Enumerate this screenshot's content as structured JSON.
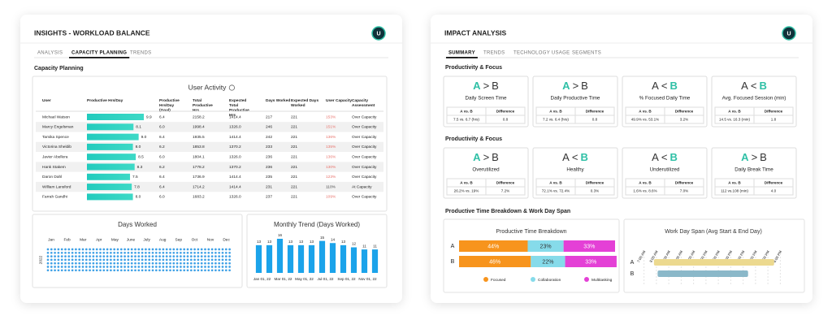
{
  "left_panel": {
    "title": "INSIGHTS - WORKLOAD BALANCE",
    "avatar": "U",
    "tabs": [
      "ANALYSIS",
      "CAPACITY PLANNING",
      "TRENDS"
    ],
    "active_tab": 1,
    "section_title": "Capacity Planning",
    "table": {
      "title": "User Activity",
      "columns": [
        "User",
        "Productive Hrs/Day",
        "Productive Hrs/Day (Goal)",
        "Total Productive Hrs",
        "Expected Total Productive Hrs",
        "Days Worked",
        "Expected Days Worked",
        "User Capacity",
        "Capacity Assessment"
      ],
      "rows": [
        [
          "Michael Watson",
          "9.9",
          "6.4",
          "2158.2",
          "1414.4",
          "217",
          "221",
          "153%",
          "Over Capacity"
        ],
        [
          "Marcy Engelsman",
          "8.1",
          "6.0",
          "1998.4",
          "1326.0",
          "246",
          "221",
          "151%",
          "Over Capacity"
        ],
        [
          "Tamika Spence",
          "9.0",
          "6.4",
          "1935.5",
          "1414.4",
          "242",
          "221",
          "136%",
          "Over Capacity"
        ],
        [
          "Victorina Sheldib",
          "8.0",
          "6.2",
          "1853.8",
          "1370.2",
          "233",
          "221",
          "135%",
          "Over Capacity"
        ],
        [
          "Javier Abellera",
          "8.5",
          "6.0",
          "1804.1",
          "1326.0",
          "236",
          "221",
          "136%",
          "Over Capacity"
        ],
        [
          "Hank Stakem",
          "8.3",
          "6.2",
          "1778.2",
          "1370.2",
          "236",
          "221",
          "130%",
          "Over Capacity"
        ],
        [
          "Daron Dahl",
          "7.5",
          "6.4",
          "1736.9",
          "1414.4",
          "235",
          "221",
          "123%",
          "Over Capacity"
        ],
        [
          "William Lansford",
          "7.8",
          "6.4",
          "1714.2",
          "1414.4",
          "231",
          "221",
          "110%",
          "At Capacity"
        ],
        [
          "Farrah Gandhi",
          "8.0",
          "6.0",
          "1683.2",
          "1326.0",
          "237",
          "221",
          "109%",
          "Over Capacity"
        ]
      ],
      "bar_values": [
        9.9,
        8.1,
        9.0,
        8.0,
        8.5,
        8.3,
        7.5,
        7.8,
        8.0
      ],
      "bar_color": "#22cbbd",
      "capacity_colors": [
        "#e8736c",
        "#e8736c",
        "#e8736c",
        "#e8736c",
        "#e8736c",
        "#e8736c",
        "#e8736c",
        "#444444",
        "#e8736c"
      ]
    },
    "days_worked": {
      "title": "Days Worked",
      "months": [
        "Jan",
        "Feb",
        "Mar",
        "Apr",
        "May",
        "June",
        "July",
        "Aug",
        "Sep",
        "Oct",
        "Nov",
        "Dec"
      ],
      "year": "2022",
      "color": "#3ea0e6"
    },
    "chart_data": {
      "type": "bar",
      "title": "Monthly Trend (Days Worked)",
      "categories": [
        "Jan 01, 22",
        null,
        "Mar 01, 22",
        null,
        "May 01, 22",
        null,
        "Jul 01, 22",
        null,
        "Sep 01, 22",
        null,
        "Nov 01, 22",
        null
      ],
      "values": [
        13,
        13,
        16,
        13,
        13,
        13,
        15,
        14,
        13,
        12,
        11,
        11
      ],
      "color": "#1ba3ea"
    }
  },
  "right_panel": {
    "title": "IMPACT ANALYSIS",
    "avatar": "U",
    "tabs": [
      "SUMMARY",
      "TRENDS",
      "TECHNOLOGY USAGE",
      "SEGMENTS"
    ],
    "active_tab": 0,
    "accent_color": "#2fc0a6",
    "table_headers": [
      "A vs. B",
      "Difference"
    ],
    "sections": [
      {
        "title": "Productivity & Focus",
        "cards": [
          {
            "left": "A",
            "op": ">",
            "right": "B",
            "label": "Daily Screen Time",
            "ab": "7.5 vs. 6.7 (hrs)",
            "diff": "0.8"
          },
          {
            "left": "A",
            "op": ">",
            "right": "B",
            "label": "Daily Productive Time",
            "ab": "7.2 vs. 6.4 (hrs)",
            "diff": "0.8"
          },
          {
            "left": "A",
            "op": "<",
            "right": "B",
            "label": "% Focused Daily Time",
            "ab": "49.9% vs. 53.1%",
            "diff": "3.2%"
          },
          {
            "left": "A",
            "op": "<",
            "right": "B",
            "label": "Avg. Focused Session (min)",
            "ab": "14.5 vs. 16.3 (min)",
            "diff": "1.8"
          }
        ]
      },
      {
        "title": "Productivity & Focus",
        "cards": [
          {
            "left": "A",
            "op": ">",
            "right": "B",
            "label": "Overutilized",
            "ab": "26.2% vs. 19%",
            "diff": "7.2%"
          },
          {
            "left": "A",
            "op": "<",
            "right": "B",
            "label": "Healthy",
            "ab": "72.1% vs. 72.4%",
            "diff": "0.3%"
          },
          {
            "left": "A",
            "op": "<",
            "right": "B",
            "label": "Underutilized",
            "ab": "1.6% vs. 8.6%",
            "diff": "7.0%"
          },
          {
            "left": "A",
            "op": ">",
            "right": "B",
            "label": "Daily Break Time",
            "ab": "112 vs.108 (min)",
            "diff": "4.0"
          }
        ]
      }
    ],
    "breakdown_title": "Productive Time Breakdown & Work Day Span",
    "chart_data": [
      {
        "type": "bar",
        "orientation": "horizontal",
        "stacked": true,
        "title": "Productive Time Breakdown",
        "categories": [
          "A",
          "B"
        ],
        "xlim": [
          0,
          100
        ],
        "series": [
          {
            "name": "Focused",
            "color": "#f7941d",
            "values": [
              44,
              46
            ],
            "value_labels": [
              "44%",
              "46%"
            ]
          },
          {
            "name": "Collaboration",
            "color": "#86dbea",
            "values": [
              23,
              22
            ],
            "value_labels": [
              "23%",
              "22%"
            ]
          },
          {
            "name": "Multitasking",
            "color": "#e440d6",
            "values": [
              33,
              33
            ],
            "value_labels": [
              "33%",
              "33%"
            ]
          }
        ]
      },
      {
        "type": "range_bar",
        "title": "Work Day Span (Avg Start & End Day)",
        "categories": [
          "A",
          "B"
        ],
        "start": [
          7.8,
          8.1
        ],
        "end": [
          17.5,
          15.4
        ],
        "colors": [
          "#ecd98f",
          "#8bb8c9"
        ],
        "xlim": [
          6.5,
          18.5
        ],
        "xticks": [
          {
            "value": 7,
            "label": "7:00 AM"
          },
          {
            "value": 8,
            "label": "8:00 AM"
          },
          {
            "value": 9,
            "label": "9:00 AM"
          },
          {
            "value": 10,
            "label": "10:00 AM"
          },
          {
            "value": 11,
            "label": "11:00 AM"
          },
          {
            "value": 12,
            "label": "12:00 PM"
          },
          {
            "value": 13,
            "label": "1:00 PM"
          },
          {
            "value": 14,
            "label": "2:00 PM"
          },
          {
            "value": 15,
            "label": "3:00 PM"
          },
          {
            "value": 16,
            "label": "4:00 PM"
          },
          {
            "value": 17,
            "label": "5:00 PM"
          },
          {
            "value": 18,
            "label": "6:00 PM"
          }
        ],
        "grid": true
      }
    ]
  }
}
